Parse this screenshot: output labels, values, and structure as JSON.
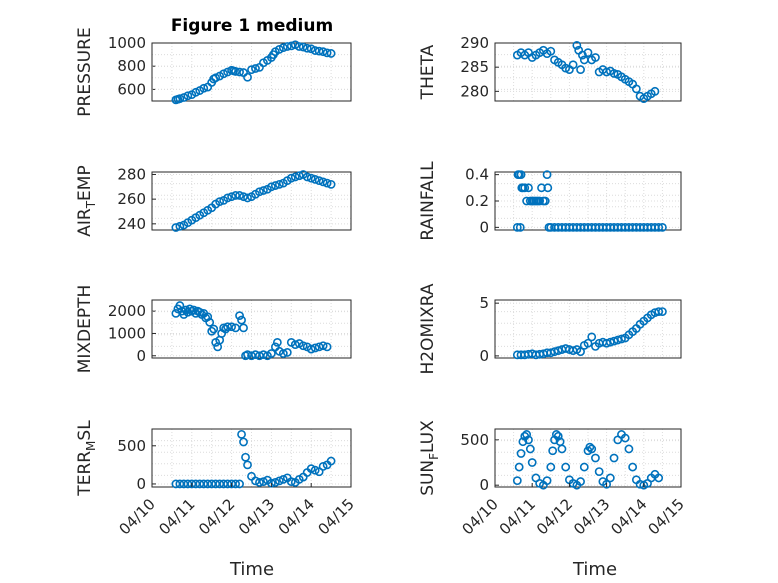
{
  "figure": {
    "title": "Figure 1 medium",
    "marker_color": "#0072BD",
    "x_tick_labels": [
      "04/10",
      "04/11",
      "04/12",
      "04/13",
      "04/14",
      "04/15"
    ],
    "xlabel": "Time"
  },
  "chart_data": [
    {
      "type": "scatter",
      "ylabel": "PRESSURE",
      "ylabel_sub": null,
      "ylabel_after": null,
      "ylim": [
        500,
        1000
      ],
      "yticks": [
        600,
        800,
        1000
      ],
      "x_range_days": [
        0,
        5
      ],
      "x": [
        0.6,
        0.65,
        0.7,
        0.8,
        0.9,
        1.0,
        1.1,
        1.2,
        1.3,
        1.4,
        1.5,
        1.55,
        1.6,
        1.7,
        1.8,
        1.9,
        2.0,
        2.05,
        2.1,
        2.2,
        2.3,
        2.4,
        2.5,
        2.6,
        2.7,
        2.8,
        2.9,
        3.0,
        3.05,
        3.1,
        3.2,
        3.3,
        3.4,
        3.5,
        3.6,
        3.7,
        3.8,
        3.9,
        4.0,
        4.1,
        4.2,
        4.3,
        4.4,
        4.5
      ],
      "y": [
        510,
        515,
        520,
        530,
        545,
        555,
        575,
        590,
        610,
        620,
        660,
        690,
        700,
        715,
        735,
        750,
        765,
        760,
        755,
        750,
        745,
        705,
        770,
        780,
        790,
        830,
        850,
        875,
        900,
        925,
        945,
        960,
        970,
        975,
        985,
        970,
        965,
        955,
        950,
        935,
        930,
        925,
        915,
        910
      ]
    },
    {
      "type": "scatter",
      "ylabel": "THETA",
      "ylabel_sub": null,
      "ylabel_after": null,
      "ylim": [
        278,
        290
      ],
      "yticks": [
        280,
        285,
        290
      ],
      "x_range_days": [
        0,
        5
      ],
      "x": [
        0.6,
        0.7,
        0.8,
        0.9,
        1.0,
        1.1,
        1.2,
        1.3,
        1.4,
        1.5,
        1.6,
        1.7,
        1.8,
        1.9,
        2.0,
        2.1,
        2.2,
        2.25,
        2.3,
        2.35,
        2.4,
        2.5,
        2.6,
        2.7,
        2.8,
        2.9,
        3.0,
        3.1,
        3.2,
        3.3,
        3.4,
        3.5,
        3.6,
        3.7,
        3.8,
        3.9,
        4.0,
        4.1,
        4.2,
        4.3
      ],
      "y": [
        287.5,
        288,
        287.5,
        288,
        287,
        287.5,
        288,
        288.5,
        287.8,
        288.3,
        286.5,
        286,
        285.5,
        284.8,
        284.5,
        285.5,
        289.5,
        288.5,
        284.5,
        287.5,
        286.5,
        288,
        286.5,
        287,
        284,
        284.5,
        284,
        284.2,
        283.7,
        283.5,
        283,
        282.5,
        282,
        281.5,
        280.5,
        279,
        278.5,
        279,
        279.5,
        280
      ]
    },
    {
      "type": "scatter",
      "ylabel": "AIR",
      "ylabel_sub": "T",
      "ylabel_after": "EMP",
      "ylim": [
        235,
        282
      ],
      "yticks": [
        240,
        260,
        280
      ],
      "x_range_days": [
        0,
        5
      ],
      "x": [
        0.6,
        0.7,
        0.8,
        0.9,
        1.0,
        1.1,
        1.2,
        1.3,
        1.4,
        1.5,
        1.6,
        1.7,
        1.8,
        1.9,
        2.0,
        2.1,
        2.2,
        2.3,
        2.4,
        2.5,
        2.6,
        2.7,
        2.8,
        2.9,
        3.0,
        3.1,
        3.2,
        3.3,
        3.4,
        3.5,
        3.6,
        3.7,
        3.8,
        3.9,
        4.0,
        4.1,
        4.2,
        4.3,
        4.4,
        4.5
      ],
      "y": [
        237,
        238,
        239,
        241,
        243,
        245,
        247,
        249,
        251,
        253,
        256,
        258,
        259,
        261,
        262,
        263,
        263,
        262,
        261,
        262,
        264,
        266,
        267,
        268,
        270,
        271,
        272,
        273,
        275,
        277,
        278,
        279,
        280,
        278,
        277,
        276,
        275,
        274,
        273,
        272
      ]
    },
    {
      "type": "scatter",
      "ylabel": "RAINFALL",
      "ylabel_sub": null,
      "ylabel_after": null,
      "ylim": [
        -0.02,
        0.42
      ],
      "yticks": [
        0,
        0.2,
        0.4
      ],
      "x_range_days": [
        0,
        5
      ],
      "x": [
        0.6,
        0.62,
        0.65,
        0.68,
        0.7,
        0.72,
        0.75,
        0.8,
        0.85,
        0.9,
        0.95,
        1.0,
        1.05,
        1.1,
        1.15,
        1.2,
        1.25,
        1.3,
        1.35,
        1.4,
        1.42,
        1.45,
        1.5,
        1.6,
        1.7,
        1.8,
        1.9,
        2.0,
        2.1,
        2.2,
        2.3,
        2.4,
        2.5,
        2.6,
        2.7,
        2.8,
        2.9,
        3.0,
        3.1,
        3.2,
        3.3,
        3.4,
        3.5,
        3.6,
        3.7,
        3.8,
        3.9,
        4.0,
        4.1,
        4.2,
        4.3,
        4.4,
        4.5
      ],
      "y": [
        0,
        0.4,
        0.4,
        0,
        0.4,
        0.3,
        0.3,
        0.3,
        0.2,
        0.3,
        0.2,
        0.2,
        0.2,
        0.2,
        0.2,
        0.2,
        0.3,
        0.2,
        0.2,
        0.4,
        0.3,
        0,
        0,
        0,
        0,
        0,
        0,
        0,
        0,
        0,
        0,
        0,
        0,
        0,
        0,
        0,
        0,
        0,
        0,
        0,
        0,
        0,
        0,
        0,
        0,
        0,
        0,
        0,
        0,
        0,
        0,
        0,
        0
      ]
    },
    {
      "type": "scatter",
      "ylabel": "MIXDEPTH",
      "ylabel_sub": null,
      "ylabel_after": null,
      "ylim": [
        -100,
        2500
      ],
      "yticks": [
        0,
        1000,
        2000
      ],
      "x_range_days": [
        0,
        5
      ],
      "x": [
        0.6,
        0.65,
        0.7,
        0.75,
        0.8,
        0.85,
        0.9,
        0.95,
        1.0,
        1.05,
        1.1,
        1.15,
        1.2,
        1.25,
        1.3,
        1.35,
        1.4,
        1.45,
        1.5,
        1.55,
        1.6,
        1.65,
        1.7,
        1.75,
        1.8,
        1.85,
        1.9,
        2.0,
        2.1,
        2.2,
        2.25,
        2.3,
        2.35,
        2.4,
        2.5,
        2.6,
        2.7,
        2.8,
        2.9,
        3.0,
        3.1,
        3.15,
        3.2,
        3.3,
        3.4,
        3.5,
        3.6,
        3.7,
        3.8,
        3.9,
        4.0,
        4.1,
        4.2,
        4.3,
        4.4
      ],
      "y": [
        1900,
        2100,
        2250,
        2000,
        1850,
        2050,
        1950,
        2100,
        2000,
        2050,
        1900,
        2000,
        1950,
        1850,
        1900,
        1700,
        1750,
        1500,
        1100,
        1200,
        600,
        400,
        700,
        1000,
        1250,
        1200,
        1300,
        1300,
        1250,
        1800,
        1600,
        1250,
        0,
        50,
        0,
        50,
        0,
        50,
        0,
        100,
        400,
        600,
        200,
        100,
        150,
        600,
        500,
        550,
        450,
        400,
        300,
        350,
        400,
        450,
        400
      ]
    },
    {
      "type": "scatter",
      "ylabel": "H2OMIXRA",
      "ylabel_sub": null,
      "ylabel_after": null,
      "ylim": [
        -0.2,
        5.3
      ],
      "yticks": [
        0,
        5
      ],
      "x_range_days": [
        0,
        5
      ],
      "x": [
        0.6,
        0.7,
        0.8,
        0.9,
        1.0,
        1.1,
        1.2,
        1.3,
        1.4,
        1.5,
        1.6,
        1.7,
        1.8,
        1.9,
        2.0,
        2.1,
        2.2,
        2.3,
        2.4,
        2.5,
        2.6,
        2.7,
        2.8,
        2.9,
        3.0,
        3.1,
        3.2,
        3.3,
        3.4,
        3.5,
        3.6,
        3.7,
        3.8,
        3.9,
        4.0,
        4.1,
        4.2,
        4.3,
        4.4,
        4.5
      ],
      "y": [
        0.1,
        0.1,
        0.1,
        0.15,
        0.2,
        0.1,
        0.15,
        0.2,
        0.3,
        0.3,
        0.4,
        0.5,
        0.6,
        0.7,
        0.6,
        0.5,
        0.6,
        0.4,
        1.0,
        1.2,
        1.8,
        0.9,
        1.2,
        1.3,
        1.2,
        1.3,
        1.4,
        1.5,
        1.6,
        1.7,
        2.0,
        2.3,
        2.6,
        3.0,
        3.3,
        3.6,
        3.9,
        4.1,
        4.2,
        4.2
      ]
    },
    {
      "type": "scatter",
      "ylabel": "TERR",
      "ylabel_sub": "M",
      "ylabel_after": "SL",
      "ylim": [
        -40,
        720
      ],
      "yticks": [
        0,
        500
      ],
      "x_range_days": [
        0,
        5
      ],
      "x": [
        0.6,
        0.7,
        0.8,
        0.9,
        1.0,
        1.1,
        1.2,
        1.3,
        1.4,
        1.5,
        1.6,
        1.7,
        1.8,
        1.9,
        2.0,
        2.1,
        2.2,
        2.25,
        2.3,
        2.35,
        2.4,
        2.5,
        2.6,
        2.7,
        2.8,
        2.9,
        3.0,
        3.1,
        3.2,
        3.3,
        3.4,
        3.5,
        3.6,
        3.7,
        3.8,
        3.9,
        4.0,
        4.1,
        4.2,
        4.3,
        4.4,
        4.5
      ],
      "y": [
        0,
        0,
        0,
        0,
        0,
        0,
        0,
        0,
        0,
        0,
        0,
        0,
        0,
        0,
        0,
        0,
        0,
        650,
        550,
        350,
        250,
        100,
        40,
        20,
        30,
        50,
        10,
        20,
        40,
        60,
        80,
        30,
        20,
        60,
        90,
        150,
        200,
        180,
        160,
        230,
        250,
        300
      ]
    },
    {
      "type": "scatter",
      "ylabel": "SUN",
      "ylabel_sub": "F",
      "ylabel_after": "LUX",
      "ylim": [
        -20,
        620
      ],
      "yticks": [
        0,
        500
      ],
      "x_range_days": [
        0,
        5
      ],
      "x": [
        0.6,
        0.65,
        0.7,
        0.75,
        0.8,
        0.85,
        0.9,
        0.95,
        1.0,
        1.1,
        1.2,
        1.3,
        1.4,
        1.5,
        1.55,
        1.6,
        1.65,
        1.7,
        1.75,
        1.8,
        1.9,
        2.0,
        2.1,
        2.2,
        2.3,
        2.4,
        2.5,
        2.55,
        2.6,
        2.7,
        2.8,
        2.9,
        3.0,
        3.1,
        3.2,
        3.3,
        3.4,
        3.5,
        3.6,
        3.7,
        3.8,
        3.9,
        4.0,
        4.1,
        4.2,
        4.3,
        4.4
      ],
      "y": [
        50,
        200,
        350,
        480,
        540,
        560,
        500,
        400,
        250,
        80,
        20,
        0,
        50,
        200,
        380,
        500,
        560,
        540,
        480,
        400,
        200,
        60,
        20,
        0,
        40,
        200,
        380,
        420,
        400,
        300,
        150,
        40,
        10,
        80,
        300,
        500,
        560,
        520,
        400,
        200,
        60,
        10,
        0,
        20,
        80,
        120,
        80
      ]
    }
  ]
}
